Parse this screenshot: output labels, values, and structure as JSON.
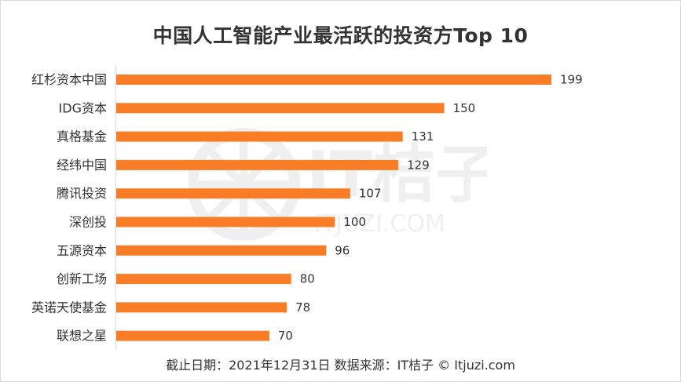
{
  "chart_data": {
    "type": "bar",
    "orientation": "horizontal",
    "title": "中国人工智能产业最活跃的投资方Top 10",
    "categories": [
      "红杉资本中国",
      "IDG资本",
      "真格基金",
      "经纬中国",
      "腾讯投资",
      "深创投",
      "五源资本",
      "创新工场",
      "英诺天使基金",
      "联想之星"
    ],
    "values": [
      199,
      150,
      131,
      129,
      107,
      100,
      96,
      80,
      78,
      70
    ],
    "xlim": [
      0,
      210
    ],
    "grid": false,
    "legend": "none",
    "bar_color": "#F97C27"
  },
  "footer": {
    "text": "截止日期：2021年12月31日    数据来源：IT桔子 © Itjuzi.com"
  },
  "watermark": {
    "brand": "IT桔子",
    "domain": "ITJUZI.COM"
  }
}
